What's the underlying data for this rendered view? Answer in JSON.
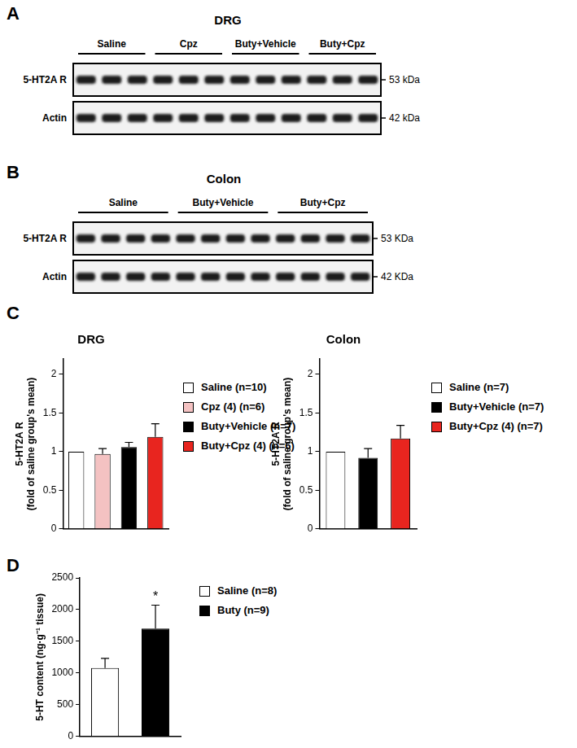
{
  "blots": [
    {
      "panel": "A",
      "title": "DRG",
      "groups": [
        "Saline",
        "Cpz",
        "Buty+Vehicle",
        "Buty+Cpz"
      ],
      "lanes_per_group": 3,
      "rows": [
        {
          "label": "5-HT2A R",
          "size": "53 kDa"
        },
        {
          "label": "Actin",
          "size": "42 kDa"
        }
      ]
    },
    {
      "panel": "B",
      "title": "Colon",
      "groups": [
        "Saline",
        "Buty+Vehicle",
        "Buty+Cpz"
      ],
      "lanes_per_group": 4,
      "rows": [
        {
          "label": "5-HT2A R",
          "size": "53 KDa"
        },
        {
          "label": "Actin",
          "size": "42 KDa"
        }
      ]
    }
  ],
  "chart_data": [
    {
      "panel": "C",
      "type": "bar",
      "title": "DRG",
      "ylabel": [
        "5-HT2A R",
        "(fold of saline group's mean)"
      ],
      "categories": [
        "Saline (n=10)",
        "Cpz (4) (n=6)",
        "Buty+Vehicle (n=7)",
        "Buty+Cpz (4) (n=6)"
      ],
      "values": [
        1,
        0.97,
        1.06,
        1.19
      ],
      "errors": [
        null,
        0.07,
        0.06,
        0.17
      ],
      "colors": [
        "#ffffff",
        "#f4c2c2",
        "#000000",
        "#e8251f"
      ],
      "ylim": [
        0,
        2.2
      ],
      "yticks": [
        0,
        0.5,
        1,
        1.5,
        2
      ],
      "grid": false,
      "legend": "right",
      "tick_labels": "y"
    },
    {
      "type": "bar",
      "title": "Colon",
      "ylabel": [
        "5-HT2A R",
        "(fold of saline group's mean)"
      ],
      "categories": [
        "Saline (n=7)",
        "Buty+Vehicle (n=7)",
        "Buty+Cpz (4) (n=7)"
      ],
      "values": [
        1,
        0.92,
        1.17
      ],
      "errors": [
        null,
        0.12,
        0.17
      ],
      "colors": [
        "#ffffff",
        "#000000",
        "#e8251f"
      ],
      "ylim": [
        0,
        2.2
      ],
      "yticks": [
        0,
        0.5,
        1,
        1.5,
        2
      ],
      "grid": false,
      "legend": "right",
      "tick_labels": "y"
    },
    {
      "panel": "D",
      "type": "bar",
      "ylabel": "5-HT content (ng·g⁻¹ tissue)",
      "categories": [
        "Saline (n=8)",
        "Buty (n=9)"
      ],
      "values": [
        1080,
        1700
      ],
      "errors": [
        150,
        370
      ],
      "colors": [
        "#ffffff",
        "#000000"
      ],
      "ylim": [
        0,
        2500
      ],
      "yticks": [
        0,
        500,
        1000,
        1500,
        2000,
        2500
      ],
      "grid": false,
      "legend": "right",
      "tick_labels": "y",
      "annotations": [
        {
          "category": "Buty (n=9)",
          "text": "*"
        }
      ]
    }
  ]
}
